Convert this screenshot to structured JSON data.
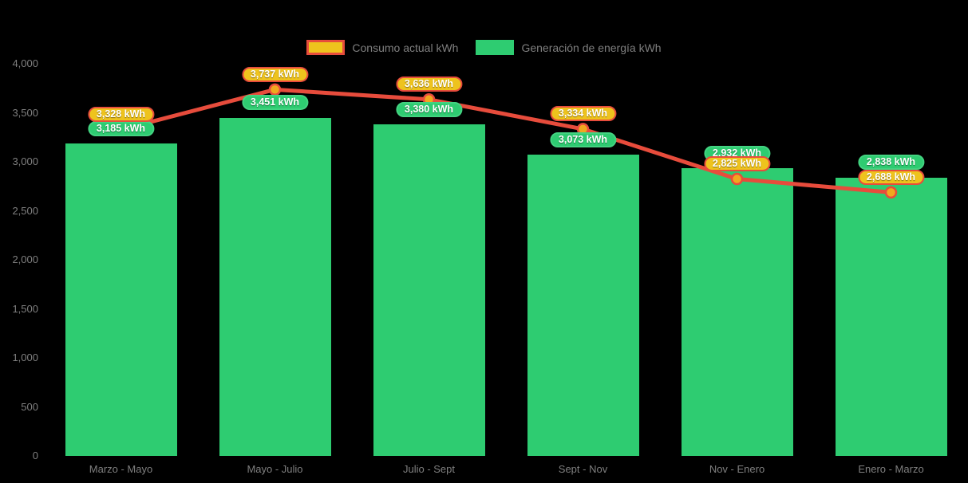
{
  "legend": {
    "consumo_label": "Consumo actual kWh",
    "generacion_label": "Generación de energía kWh"
  },
  "colors": {
    "background": "#000000",
    "axis_text": "#7f7f7f",
    "bar_green": "#2ecc71",
    "line_red": "#e74c3c",
    "marker_gold": "#f0a81f",
    "pill_gold": "#eec31d"
  },
  "chart_data": {
    "type": "bar+line",
    "title": "",
    "xlabel": "",
    "ylabel": "",
    "categories": [
      "Marzo - Mayo",
      "Mayo - Julio",
      "Julio - Sept",
      "Sept - Nov",
      "Nov - Enero",
      "Enero - Marzo"
    ],
    "series": [
      {
        "name": "Consumo actual kWh",
        "type": "line",
        "color": "#e74c3c",
        "marker_color": "#f0a81f",
        "values": [
          3328,
          3737,
          3636,
          3334,
          2825,
          2688
        ],
        "labels": [
          "3,328 kWh",
          "3,737 kWh",
          "3,636 kWh",
          "3,334 kWh",
          "2,825 kWh",
          "2,688 kWh"
        ]
      },
      {
        "name": "Generación de energía kWh",
        "type": "bar",
        "color": "#2ecc71",
        "values": [
          3185,
          3451,
          3380,
          3073,
          2932,
          2838
        ],
        "labels": [
          "3,185 kWh",
          "3,451 kWh",
          "3,380 kWh",
          "3,073 kWh",
          "2,932 kWh",
          "2,838 kWh"
        ]
      }
    ],
    "ylim": [
      0,
      4000
    ],
    "y_ticks": [
      "0",
      "500",
      "1,000",
      "1,500",
      "2,000",
      "2,500",
      "3,000",
      "3,500",
      "4,000"
    ],
    "y_tick_values": [
      0,
      500,
      1000,
      1500,
      2000,
      2500,
      3000,
      3500,
      4000
    ],
    "grid": false,
    "legend_position": "top-center"
  }
}
